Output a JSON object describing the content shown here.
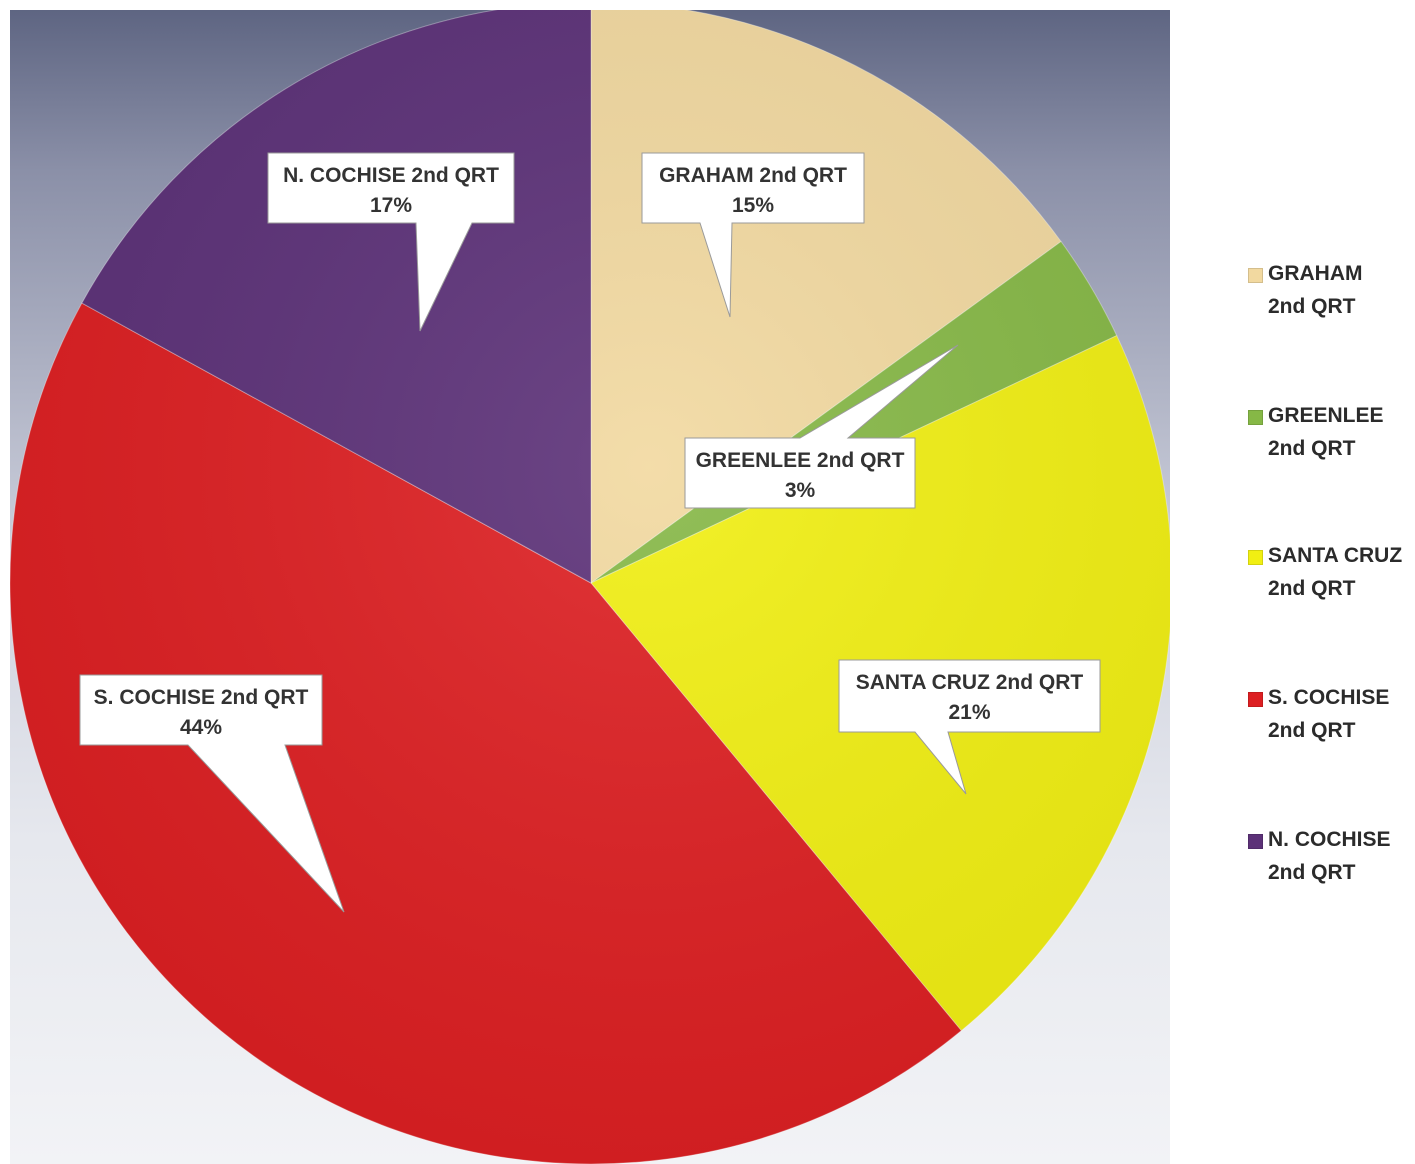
{
  "chart_data": {
    "type": "pie",
    "categories": [
      "GRAHAM 2nd QRT",
      "GREENLEE 2nd QRT",
      "SANTA CRUZ 2nd QRT",
      "S. COCHISE 2nd QRT",
      "N. COCHISE 2nd QRT"
    ],
    "values": [
      15,
      3,
      21,
      44,
      17
    ],
    "data_labels": [
      {
        "name": "GRAHAM 2nd QRT",
        "value": "15%"
      },
      {
        "name": "GREENLEE 2nd QRT",
        "value": "3%"
      },
      {
        "name": "SANTA CRUZ 2nd QRT",
        "value": "21%"
      },
      {
        "name": "S. COCHISE 2nd QRT",
        "value": "44%"
      },
      {
        "name": "N. COCHISE 2nd QRT",
        "value": "17%"
      }
    ],
    "colors": [
      "#f2d9a0",
      "#86b846",
      "#f1ef12",
      "#dd1f22",
      "#5c3178"
    ],
    "start_angle": "12 o'clock",
    "direction": "clockwise",
    "legend_position": "right",
    "legend": [
      {
        "line1": "GRAHAM",
        "line2": "2nd QRT"
      },
      {
        "line1": "GREENLEE",
        "line2": "2nd QRT"
      },
      {
        "line1": "SANTA CRUZ",
        "line2": "2nd QRT"
      },
      {
        "line1": "S. COCHISE",
        "line2": "2nd QRT"
      },
      {
        "line1": "N. COCHISE",
        "line2": "2nd QRT"
      }
    ]
  }
}
